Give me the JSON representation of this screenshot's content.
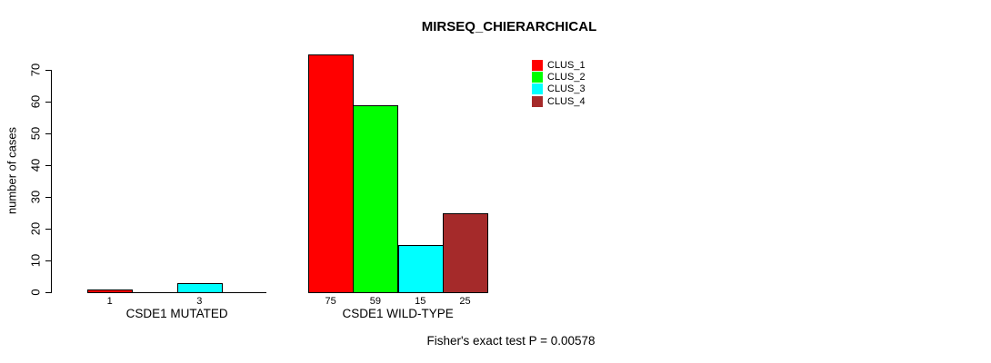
{
  "title": "MIRSEQ_CHIERARCHICAL",
  "ylabel": "number of cases",
  "footnote": "Fisher's exact test P = 0.00578",
  "legend": {
    "items": [
      {
        "label": "CLUS_1",
        "color": "#FF0000"
      },
      {
        "label": "CLUS_2",
        "color": "#00FF00"
      },
      {
        "label": "CLUS_3",
        "color": "#00FFFF"
      },
      {
        "label": "CLUS_4",
        "color": "#A52A2A"
      }
    ]
  },
  "chart_data": {
    "type": "bar",
    "title": "MIRSEQ_CHIERARCHICAL",
    "xlabel": "",
    "ylabel": "number of cases",
    "ylim": [
      0,
      70
    ],
    "yticks": [
      0,
      10,
      20,
      30,
      40,
      50,
      60,
      70
    ],
    "grid": false,
    "legend_position": "top-right",
    "categories": [
      "CSDE1 MUTATED",
      "CSDE1 WILD-TYPE"
    ],
    "series": [
      {
        "name": "CLUS_1",
        "color": "#FF0000",
        "values": [
          1,
          75
        ]
      },
      {
        "name": "CLUS_2",
        "color": "#00FF00",
        "values": [
          0,
          59
        ]
      },
      {
        "name": "CLUS_3",
        "color": "#00FFFF",
        "values": [
          3,
          15
        ]
      },
      {
        "name": "CLUS_4",
        "color": "#A52A2A",
        "values": [
          0,
          25
        ]
      }
    ],
    "bar_value_labels": [
      [
        "1",
        "",
        "3",
        ""
      ],
      [
        "75",
        "59",
        "15",
        "25"
      ]
    ],
    "annotation": "Fisher's exact test P = 0.00578"
  }
}
